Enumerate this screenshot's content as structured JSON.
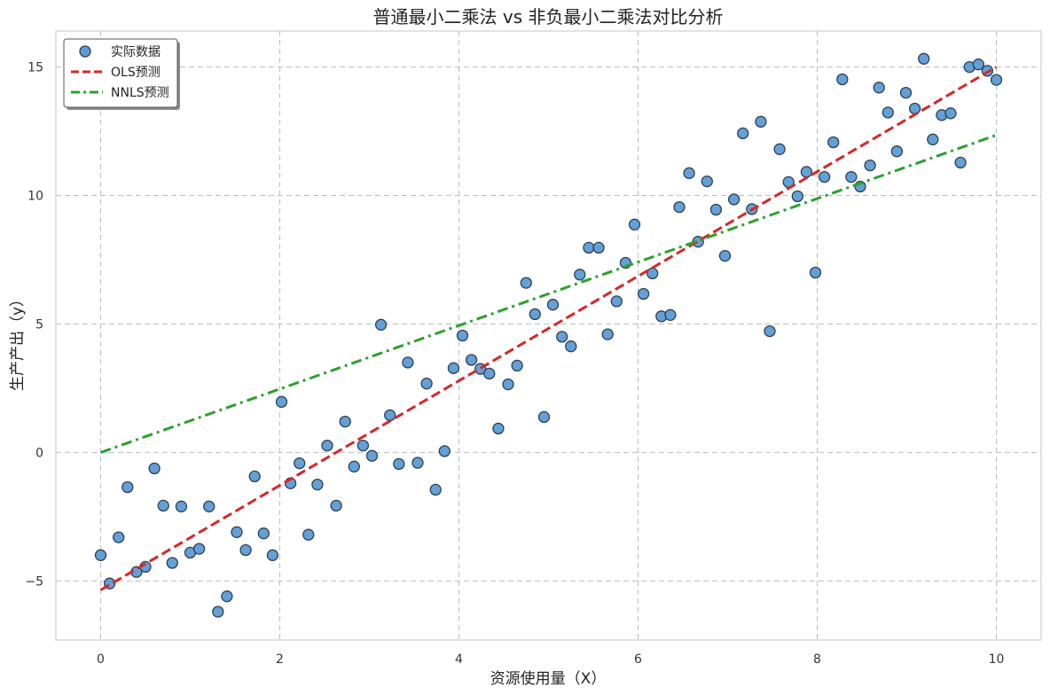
{
  "chart_data": {
    "type": "scatter",
    "title": "普通最小二乘法 vs 非负最小二乘法对比分析",
    "xlabel": "资源使用量（X）",
    "ylabel": "生产产出（y）",
    "xlim": [
      -0.5,
      10.5
    ],
    "ylim": [
      -7.3,
      16.4
    ],
    "xticks": [
      0,
      2,
      4,
      6,
      8,
      10
    ],
    "yticks": [
      -5,
      0,
      5,
      10,
      15
    ],
    "grid": true,
    "legend_position": "top-left",
    "series": [
      {
        "name": "实际数据",
        "kind": "scatter",
        "color": "#5b9bd5",
        "edge_color": "#2f3f4f",
        "points": [
          [
            0.0,
            -4.0
          ],
          [
            0.1,
            -5.1
          ],
          [
            0.2,
            -3.3
          ],
          [
            0.3,
            -1.35
          ],
          [
            0.4,
            -4.65
          ],
          [
            0.5,
            -4.45
          ],
          [
            0.6,
            -0.62
          ],
          [
            0.7,
            -2.07
          ],
          [
            0.8,
            -4.3
          ],
          [
            0.9,
            -2.1
          ],
          [
            1.0,
            -3.9
          ],
          [
            1.1,
            -3.75
          ],
          [
            1.21,
            -2.1
          ],
          [
            1.31,
            -6.2
          ],
          [
            1.41,
            -5.6
          ],
          [
            1.52,
            -3.1
          ],
          [
            1.62,
            -3.8
          ],
          [
            1.72,
            -0.93
          ],
          [
            1.82,
            -3.15
          ],
          [
            1.92,
            -4.0
          ],
          [
            2.02,
            1.97
          ],
          [
            2.12,
            -1.2
          ],
          [
            2.22,
            -0.42
          ],
          [
            2.32,
            -3.2
          ],
          [
            2.42,
            -1.25
          ],
          [
            2.53,
            0.27
          ],
          [
            2.63,
            -2.07
          ],
          [
            2.73,
            1.2
          ],
          [
            2.83,
            -0.55
          ],
          [
            2.93,
            0.27
          ],
          [
            3.03,
            -0.13
          ],
          [
            3.13,
            4.97
          ],
          [
            3.23,
            1.45
          ],
          [
            3.33,
            -0.45
          ],
          [
            3.43,
            3.5
          ],
          [
            3.54,
            -0.4
          ],
          [
            3.64,
            2.68
          ],
          [
            3.74,
            -1.45
          ],
          [
            3.84,
            0.05
          ],
          [
            3.94,
            3.28
          ],
          [
            4.04,
            4.55
          ],
          [
            4.14,
            3.6
          ],
          [
            4.24,
            3.25
          ],
          [
            4.34,
            3.07
          ],
          [
            4.44,
            0.93
          ],
          [
            4.55,
            2.65
          ],
          [
            4.65,
            3.38
          ],
          [
            4.75,
            6.6
          ],
          [
            4.85,
            5.38
          ],
          [
            4.95,
            1.38
          ],
          [
            5.05,
            5.75
          ],
          [
            5.15,
            4.5
          ],
          [
            5.25,
            4.13
          ],
          [
            5.35,
            6.92
          ],
          [
            5.45,
            7.97
          ],
          [
            5.56,
            7.97
          ],
          [
            5.66,
            4.6
          ],
          [
            5.76,
            5.88
          ],
          [
            5.86,
            7.38
          ],
          [
            5.96,
            8.87
          ],
          [
            6.06,
            6.17
          ],
          [
            6.16,
            6.97
          ],
          [
            6.26,
            5.3
          ],
          [
            6.36,
            5.35
          ],
          [
            6.46,
            9.55
          ],
          [
            6.57,
            10.87
          ],
          [
            6.67,
            8.2
          ],
          [
            6.77,
            10.55
          ],
          [
            6.87,
            9.45
          ],
          [
            6.97,
            7.65
          ],
          [
            7.07,
            9.85
          ],
          [
            7.17,
            12.42
          ],
          [
            7.27,
            9.47
          ],
          [
            7.37,
            12.87
          ],
          [
            7.47,
            4.72
          ],
          [
            7.58,
            11.8
          ],
          [
            7.68,
            10.52
          ],
          [
            7.78,
            9.97
          ],
          [
            7.88,
            10.92
          ],
          [
            7.98,
            7.0
          ],
          [
            8.08,
            10.72
          ],
          [
            8.18,
            12.07
          ],
          [
            8.28,
            14.52
          ],
          [
            8.38,
            10.72
          ],
          [
            8.48,
            10.35
          ],
          [
            8.59,
            11.17
          ],
          [
            8.69,
            14.2
          ],
          [
            8.79,
            13.23
          ],
          [
            8.89,
            11.72
          ],
          [
            8.99,
            14.0
          ],
          [
            9.09,
            13.38
          ],
          [
            9.19,
            15.32
          ],
          [
            9.29,
            12.18
          ],
          [
            9.39,
            13.13
          ],
          [
            9.49,
            13.2
          ],
          [
            9.6,
            11.28
          ],
          [
            9.7,
            15.0
          ],
          [
            9.8,
            15.1
          ],
          [
            9.9,
            14.85
          ],
          [
            10.0,
            14.5
          ]
        ]
      },
      {
        "name": "OLS预测",
        "kind": "line",
        "style": "dashed",
        "color": "#d62728",
        "points": [
          [
            0,
            -5.35
          ],
          [
            10,
            15.0
          ]
        ]
      },
      {
        "name": "NNLS预测",
        "kind": "line",
        "style": "dashdot",
        "color": "#2ca02c",
        "points": [
          [
            0,
            0.0
          ],
          [
            10,
            12.35
          ]
        ]
      }
    ]
  }
}
